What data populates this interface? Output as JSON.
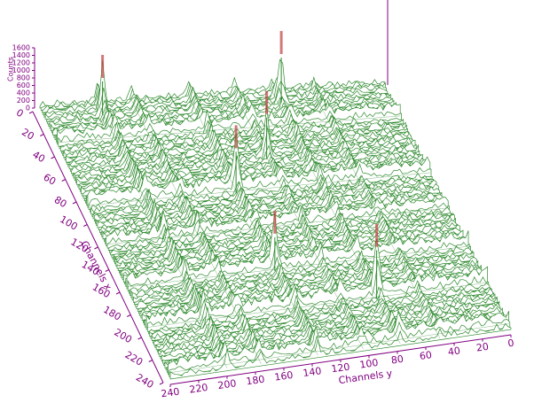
{
  "chart_data": {
    "type": "surface",
    "zlabel": "Counts",
    "xlabel": "Channels x",
    "ylabel": "Channels y",
    "xlim": [
      0,
      240
    ],
    "ylim": [
      0,
      240
    ],
    "zlim": [
      0,
      1600
    ],
    "xticks": [
      0,
      20,
      40,
      60,
      80,
      100,
      120,
      140,
      160,
      180,
      200,
      220,
      240
    ],
    "yticks": [
      0,
      20,
      40,
      60,
      80,
      100,
      120,
      140,
      160,
      180,
      200,
      220,
      240
    ],
    "zticks": [
      0,
      200,
      400,
      600,
      800,
      1000,
      1200,
      1400,
      1600
    ],
    "color": "#2f8a2f",
    "axis_color": "#800080",
    "peak_color": "#c04040",
    "ridges": [
      {
        "x": 32,
        "counts": 300
      },
      {
        "x": 88,
        "counts": 350
      },
      {
        "x": 122,
        "counts": 250
      },
      {
        "x": 160,
        "counts": 300
      },
      {
        "x": 196,
        "counts": 350
      },
      {
        "x": 236,
        "counts": 300
      },
      {
        "y": 200,
        "counts": 450
      },
      {
        "y": 176,
        "counts": 350
      },
      {
        "y": 136,
        "counts": 400
      },
      {
        "y": 104,
        "counts": 300
      },
      {
        "y": 78,
        "counts": 350
      },
      {
        "y": 50,
        "counts": 250
      }
    ],
    "peaks": [
      {
        "x": 10,
        "y": 200,
        "counts": 900
      },
      {
        "x": 60,
        "y": 104,
        "counts": 1100
      },
      {
        "x": 88,
        "y": 136,
        "counts": 1100
      },
      {
        "x": 196,
        "y": 78,
        "counts": 1300
      },
      {
        "x": 160,
        "y": 136,
        "counts": 900
      },
      {
        "x": 10,
        "y": 75,
        "counts": 1200
      }
    ]
  }
}
